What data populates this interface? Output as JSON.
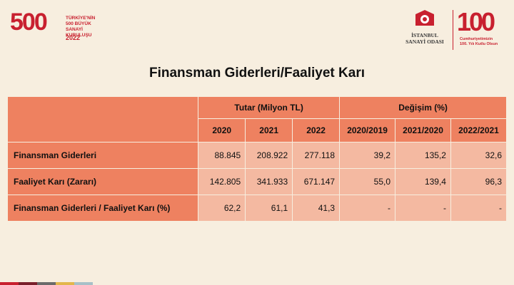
{
  "logos": {
    "left": {
      "number": "500",
      "line1": "TÜRKİYE'NİN",
      "line2": "500 BÜYÜK SANAYİ",
      "line3": "KURULUŞU",
      "year": "2022"
    },
    "iso_name_line1": "İSTANBUL",
    "iso_name_line2": "SANAYİ ODASI",
    "right": {
      "number": "100",
      "line1": "Cumhuriyetimizin",
      "line2": "100. Yılı Kutlu Olsun"
    }
  },
  "title": "Finansman Giderleri/Faaliyet Karı",
  "table": {
    "group_headers": [
      "Tutar (Milyon TL)",
      "Değişim (%)"
    ],
    "columns": [
      "2020",
      "2021",
      "2022",
      "2020/2019",
      "2021/2020",
      "2022/2021"
    ],
    "rows": [
      {
        "label": "Finansman Giderleri",
        "values": [
          "88.845",
          "208.922",
          "277.118",
          "39,2",
          "135,2",
          "32,6"
        ]
      },
      {
        "label": "Faaliyet Karı (Zararı)",
        "values": [
          "142.805",
          "341.933",
          "671.147",
          "55,0",
          "139,4",
          "96,3"
        ]
      },
      {
        "label": "Finansman Giderleri / Faaliyet Karı (%)",
        "values": [
          "62,2",
          "61,1",
          "41,3",
          "-",
          "-",
          "-"
        ]
      }
    ]
  },
  "colors": {
    "accent_red": "#c8202f",
    "header_cell": "#ee8160",
    "value_cell": "#f4b9a1",
    "background": "#f7eedf"
  }
}
